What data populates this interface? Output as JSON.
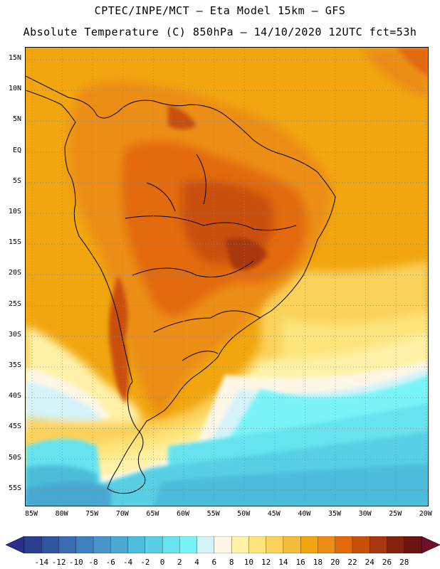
{
  "header": {
    "line1": "CPTEC/INPE/MCT –  Eta Model 15km – GFS",
    "line2": "Absolute Temperature (C) 850hPa – 14/10/2020 12UTC fct=53h"
  },
  "map": {
    "latitude_labels": [
      "15N",
      "10N",
      "5N",
      "EQ",
      "5S",
      "10S",
      "15S",
      "20S",
      "25S",
      "30S",
      "35S",
      "40S",
      "45S",
      "50S",
      "55S"
    ],
    "longitude_labels": [
      "85W",
      "80W",
      "75W",
      "70W",
      "65W",
      "60W",
      "55W",
      "50W",
      "45W",
      "40W",
      "35W",
      "30W",
      "25W",
      "20W"
    ],
    "gridlines": "dotted"
  },
  "colorbar": {
    "tick_labels": [
      "-14",
      "-12",
      "-10",
      "-8",
      "-6",
      "-4",
      "-2",
      "0",
      "2",
      "4",
      "6",
      "8",
      "10",
      "12",
      "14",
      "16",
      "18",
      "20",
      "22",
      "24",
      "26",
      "28"
    ],
    "colors": [
      "#2b3f8e",
      "#2f55a0",
      "#3a6cb2",
      "#3f81c0",
      "#4795c9",
      "#4aa8d3",
      "#4cbddb",
      "#58cfe4",
      "#66e3ee",
      "#78f4f8",
      "#d4f3fa",
      "#fef7e6",
      "#fff2a8",
      "#fde57c",
      "#fad15a",
      "#f5bc3b",
      "#f1a60f",
      "#ec8e12",
      "#e36a0b",
      "#c9500a",
      "#a73810",
      "#84230f",
      "#6b1412"
    ],
    "left_arrow_color": "#2a2e88",
    "right_arrow_color": "#6e0f2b"
  }
}
